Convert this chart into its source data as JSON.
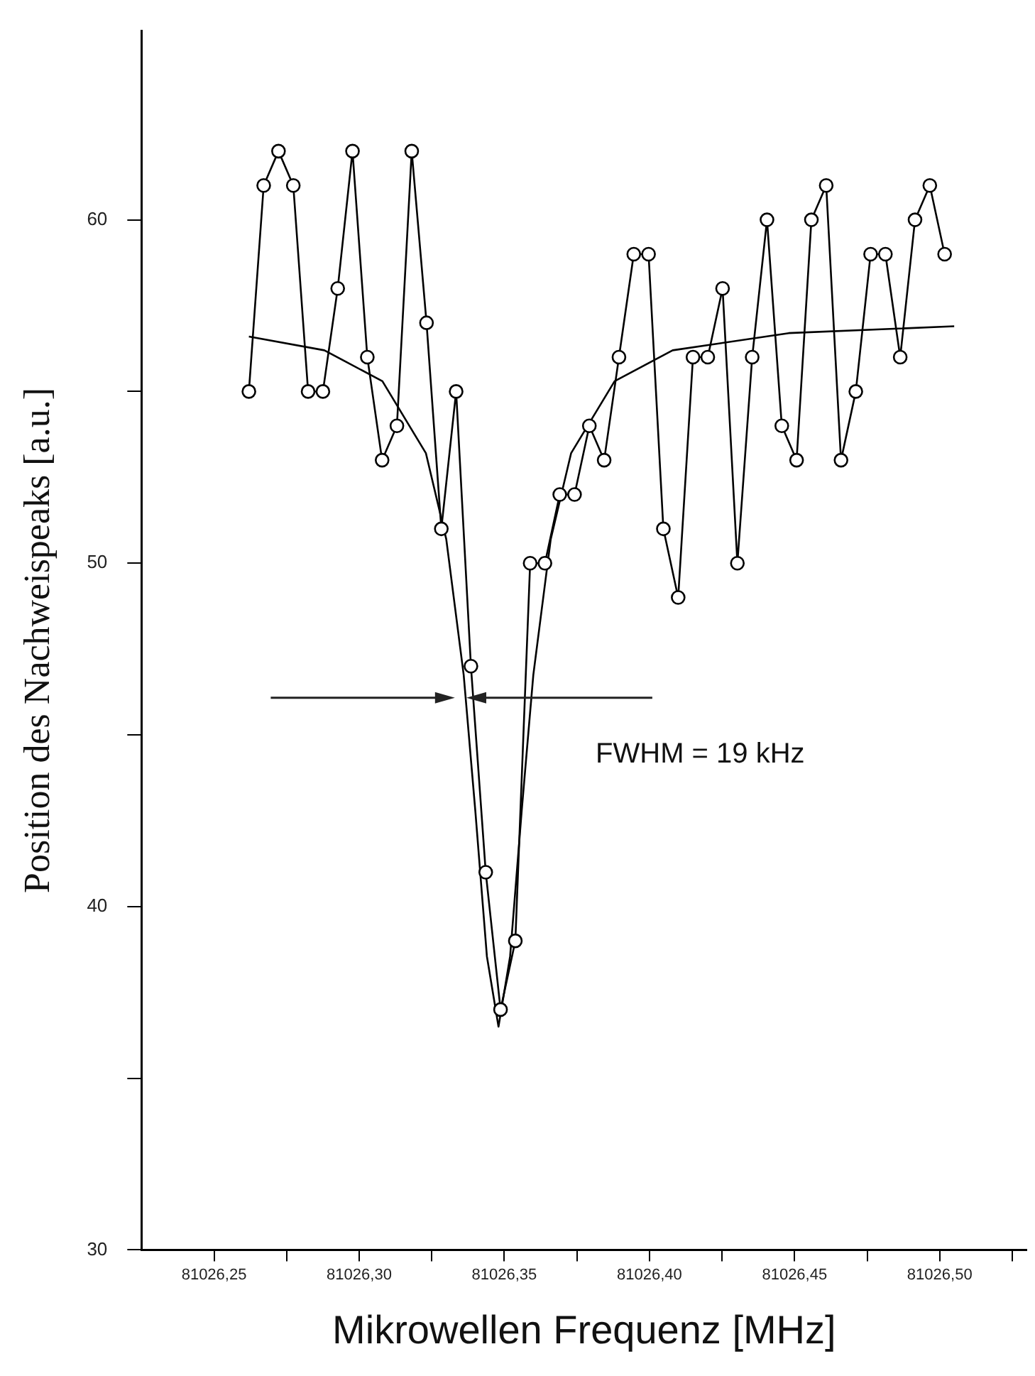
{
  "chart_data": {
    "type": "line",
    "xlabel": "Mikrowellen Frequenz [MHz]",
    "ylabel": "Position des Nachweispeaks [a.u.]",
    "xlim": [
      81026.225,
      81026.53
    ],
    "ylim": [
      30,
      65.5
    ],
    "xticks": [
      {
        "value": 81026.25,
        "label": "81026,25"
      },
      {
        "value": 81026.275,
        "label": null
      },
      {
        "value": 81026.3,
        "label": "81026,30"
      },
      {
        "value": 81026.325,
        "label": null
      },
      {
        "value": 81026.35,
        "label": "81026,35"
      },
      {
        "value": 81026.375,
        "label": null
      },
      {
        "value": 81026.4,
        "label": "81026,40"
      },
      {
        "value": 81026.425,
        "label": null
      },
      {
        "value": 81026.45,
        "label": "81026,45"
      },
      {
        "value": 81026.475,
        "label": null
      },
      {
        "value": 81026.5,
        "label": "81026,50"
      },
      {
        "value": 81026.525,
        "label": null
      }
    ],
    "yticks": [
      30,
      {
        "value": 35,
        "label": null
      },
      40,
      {
        "value": 45,
        "label": null
      },
      50,
      {
        "value": 55,
        "label": null
      },
      60
    ],
    "grid": false,
    "legend": false,
    "annotations": [
      "FWHM = 19 kHz"
    ],
    "series": [
      {
        "color": "#000000",
        "marker": "circle",
        "x": [
          81026.262,
          81026.2671,
          81026.2722,
          81026.2773,
          81026.2824,
          81026.2875,
          81026.2926,
          81026.2977,
          81026.3028,
          81026.3079,
          81026.313,
          81026.3181,
          81026.3232,
          81026.3283,
          81026.3334,
          81026.3385,
          81026.3436,
          81026.3487,
          81026.3538,
          81026.3589,
          81026.364,
          81026.3691,
          81026.3742,
          81026.3793,
          81026.3844,
          81026.3895,
          81026.3946,
          81026.3997,
          81026.4048,
          81026.4099,
          81026.415,
          81026.4201,
          81026.4252,
          81026.4303,
          81026.4354,
          81026.4405,
          81026.4456,
          81026.4507,
          81026.4558,
          81026.4609,
          81026.466,
          81026.4711,
          81026.4762,
          81026.4813,
          81026.4864,
          81026.4915,
          81026.4966,
          81026.5017
        ],
        "values": [
          55,
          61,
          62,
          61,
          55,
          55,
          58,
          62,
          56,
          53,
          54,
          62,
          57,
          51,
          55,
          47,
          41,
          37,
          39,
          50,
          50,
          52,
          52,
          54,
          53,
          56,
          59,
          59,
          51,
          49,
          56,
          56,
          58,
          50,
          56,
          60,
          54,
          53,
          60,
          61,
          53,
          55,
          59,
          59,
          56,
          60,
          61,
          59
        ]
      },
      {
        "color": "#000000",
        "marker": "none",
        "x": [
          81026.262,
          81026.288,
          81026.308,
          81026.323,
          81026.33,
          81026.336,
          81026.34,
          81026.344,
          81026.348,
          81026.352,
          81026.356,
          81026.36,
          81026.366,
          81026.373,
          81026.388,
          81026.408,
          81026.448,
          81026.505
        ],
        "values": [
          56.6,
          56.2,
          55.3,
          53.2,
          50.7,
          46.75,
          42.8,
          38.55,
          36.5,
          38.55,
          42.8,
          46.75,
          50.7,
          53.2,
          55.3,
          56.2,
          56.7,
          56.9
        ]
      }
    ]
  }
}
